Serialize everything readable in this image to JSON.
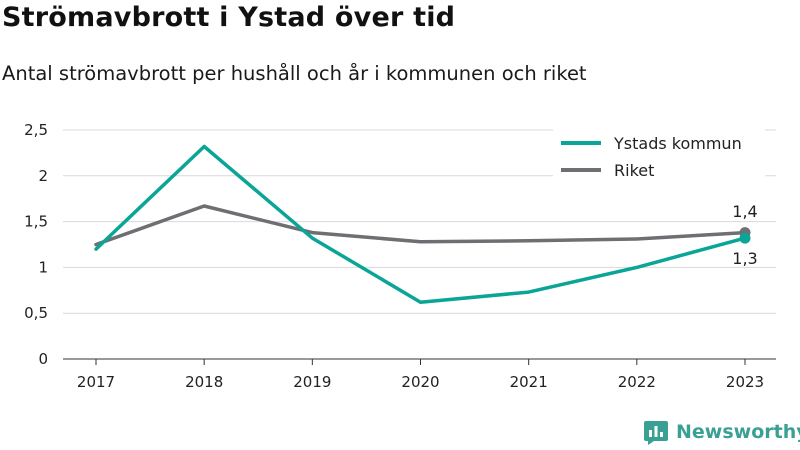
{
  "title": "Strömavbrott i Ystad över tid",
  "subtitle": "Antal strömavbrott per hushåll och år i kommunen och riket",
  "brand": "Newsworthy",
  "icons": {
    "brand": "newsworthy-logo-icon"
  },
  "colors": {
    "ystad": "#0aa596",
    "riket": "#6f6e73",
    "grid": "#d9d9d9",
    "brand": "#3aa093"
  },
  "chart_data": {
    "type": "line",
    "x": [
      "2017",
      "2018",
      "2019",
      "2020",
      "2021",
      "2022",
      "2023"
    ],
    "series": [
      {
        "name": "Ystads kommun",
        "values": [
          1.2,
          2.32,
          1.32,
          0.62,
          0.73,
          1.0,
          1.32
        ],
        "end_label": "1,3"
      },
      {
        "name": "Riket",
        "values": [
          1.25,
          1.67,
          1.38,
          1.28,
          1.29,
          1.31,
          1.38
        ],
        "end_label": "1,4"
      }
    ],
    "ylim": [
      0,
      2.5
    ],
    "yticks": [
      "0",
      "0,5",
      "1",
      "1,5",
      "2",
      "2,5"
    ],
    "grid": true,
    "legend_position": "top-right"
  }
}
